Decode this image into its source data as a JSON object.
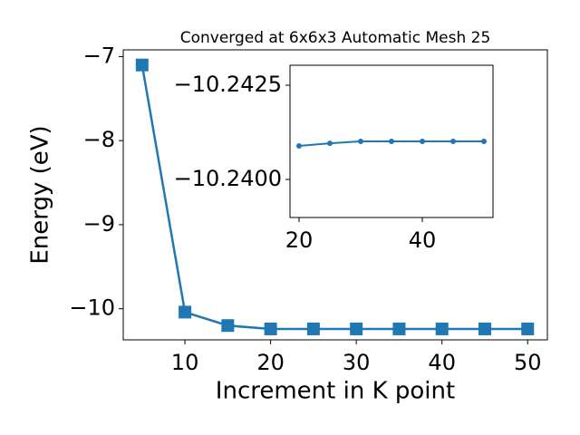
{
  "chart_data": [
    {
      "type": "line",
      "title": "Converged at 6x6x3 Automatic Mesh 25",
      "xlabel": "Increment in K point",
      "ylabel": "Energy (eV)",
      "marker": "square",
      "color": "#1f77b4",
      "x": [
        5,
        10,
        15,
        20,
        25,
        30,
        35,
        40,
        45,
        50
      ],
      "values": [
        -7.1,
        -10.04,
        -10.2,
        -10.24,
        -10.24,
        -10.24,
        -10.24,
        -10.24,
        -10.24,
        -10.24
      ],
      "xlim": [
        2.8,
        52.3
      ],
      "ylim": [
        -10.37,
        -6.92
      ],
      "xticks": [
        10,
        20,
        30,
        40,
        50
      ],
      "yticks": [
        {
          "value": -10,
          "label": "−10"
        },
        {
          "value": -9,
          "label": "−9"
        },
        {
          "value": -8,
          "label": "−8"
        },
        {
          "value": -7,
          "label": "−7"
        }
      ]
    },
    {
      "type": "line",
      "marker": "circle",
      "color": "#1f77b4",
      "x": [
        20,
        25,
        30,
        35,
        40,
        45,
        50
      ],
      "values": [
        -10.24089,
        -10.24096,
        -10.24101,
        -10.24101,
        -10.24101,
        -10.24101,
        -10.24101
      ],
      "xlim": [
        18.53,
        51.47
      ],
      "ylim": [
        -10.23899,
        -10.24303
      ],
      "xticks": [
        20,
        40
      ],
      "yticks": [
        {
          "value": -10.24,
          "label": "−10.2400"
        },
        {
          "value": -10.2425,
          "label": "−10.2425"
        }
      ]
    }
  ]
}
